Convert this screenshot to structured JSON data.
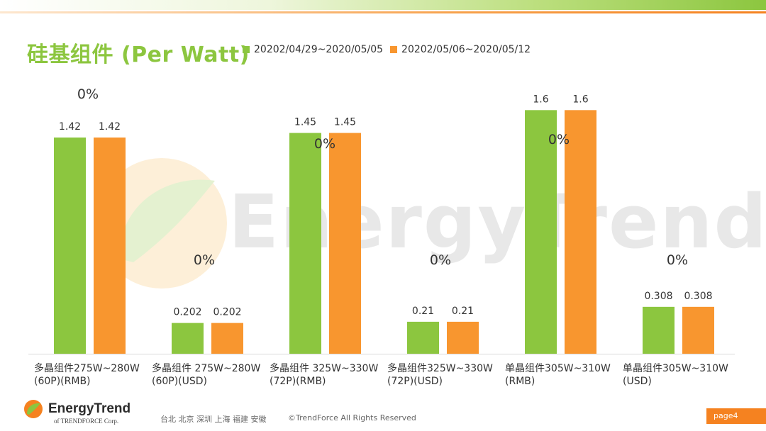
{
  "title": "硅基组件 (Per Watt)",
  "colors": {
    "series1": "#8cc63f",
    "series2": "#f8962f",
    "title": "#8cc63f",
    "accent": "#f58220"
  },
  "watermark": "EnergyTrend",
  "footer": {
    "brand": "EnergyTrend",
    "brand_sub": "of TRENDFORCE Corp.",
    "cities": "台北  北京  深圳  上海  福建  安徽",
    "copyright": "©TrendForce All Rights Reserved",
    "page": "page4"
  },
  "chart_data": {
    "type": "bar",
    "title": "硅基组件 (Per Watt)",
    "categories": [
      "多晶组件275W~280W\n(60P)(RMB)",
      "多晶组件 275W~280W\n(60P)(USD)",
      "多晶组件 325W~330W\n(72P)(RMB)",
      "多晶组件325W~330W\n(72P)(USD)",
      "单晶组件305W~310W\n(RMB)",
      "单晶组件305W~310W\n(USD)"
    ],
    "series": [
      {
        "name": "20202/04/29~2020/05/05",
        "values": [
          1.42,
          0.202,
          1.45,
          0.21,
          1.6,
          0.308
        ],
        "labels": [
          "1.42",
          "0.202",
          "1.45",
          "0.21",
          "1.6",
          "0.308"
        ]
      },
      {
        "name": "20202/05/06~2020/05/12",
        "values": [
          1.42,
          0.202,
          1.45,
          0.21,
          1.6,
          0.308
        ],
        "labels": [
          "1.42",
          "0.202",
          "1.45",
          "0.21",
          "1.6",
          "0.308"
        ]
      }
    ],
    "change_labels": [
      "0%",
      "0%",
      "0%",
      "0%",
      "0%",
      "0%"
    ],
    "ylim": [
      0,
      1.7
    ],
    "grid": false,
    "legend_position": "top"
  }
}
